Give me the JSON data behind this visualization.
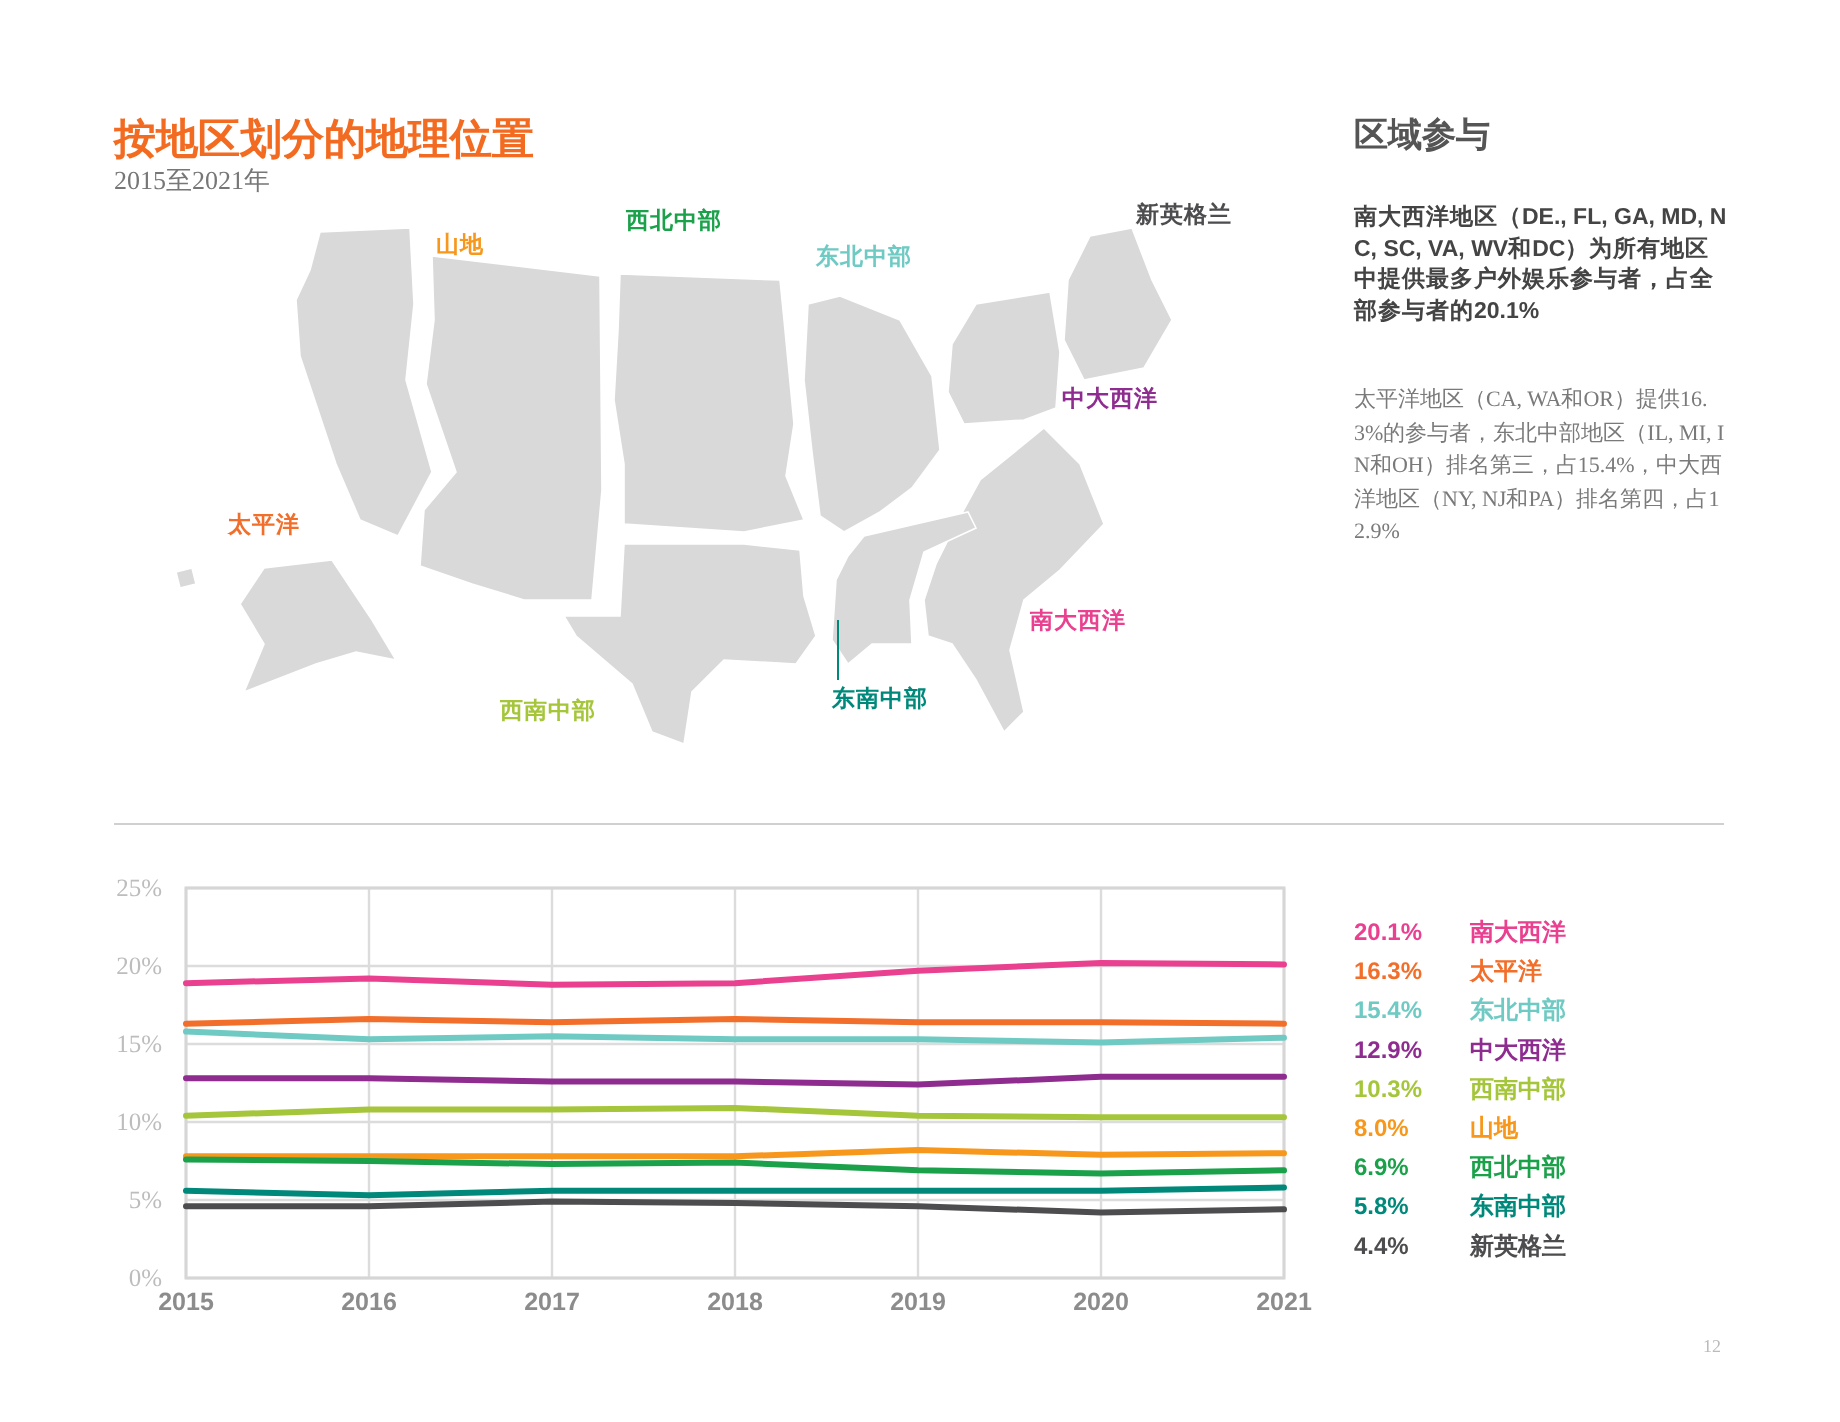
{
  "chart_data": [
    {
      "type": "line",
      "title": "按地区划分的地理位置",
      "subtitle": "2015至2021年",
      "x": [
        2015,
        2016,
        2017,
        2018,
        2019,
        2020,
        2021
      ],
      "xlim": [
        2015,
        2021
      ],
      "xticks": [
        2015,
        2016,
        2017,
        2018,
        2019,
        2020,
        2021
      ],
      "ylim": [
        0,
        25
      ],
      "yticks": [
        {
          "value": 0,
          "label": "0%"
        },
        {
          "value": 5,
          "label": "5%"
        },
        {
          "value": 10,
          "label": "10%"
        },
        {
          "value": 15,
          "label": "15%"
        },
        {
          "value": 20,
          "label": "20%"
        },
        {
          "value": 25,
          "label": "25%"
        }
      ],
      "grid": true,
      "legend": "right",
      "series": [
        {
          "name": "南大西洋",
          "color": "#e9408f",
          "values": [
            18.9,
            19.2,
            18.8,
            18.9,
            19.7,
            20.2,
            20.1
          ]
        },
        {
          "name": "太平洋",
          "color": "#f26f2b",
          "values": [
            16.3,
            16.6,
            16.4,
            16.6,
            16.4,
            16.4,
            16.3
          ]
        },
        {
          "name": "东北中部",
          "color": "#6fcac3",
          "values": [
            15.8,
            15.3,
            15.5,
            15.3,
            15.3,
            15.1,
            15.4
          ]
        },
        {
          "name": "中大西洋",
          "color": "#8e2d8f",
          "values": [
            12.8,
            12.8,
            12.6,
            12.6,
            12.4,
            12.9,
            12.9
          ]
        },
        {
          "name": "西南中部",
          "color": "#a5c63b",
          "values": [
            10.4,
            10.8,
            10.8,
            10.9,
            10.4,
            10.3,
            10.3
          ]
        },
        {
          "name": "山地",
          "color": "#f7981d",
          "values": [
            7.8,
            7.8,
            7.8,
            7.8,
            8.2,
            7.9,
            8.0
          ]
        },
        {
          "name": "西北中部",
          "color": "#1aa14a",
          "values": [
            7.6,
            7.5,
            7.3,
            7.4,
            6.9,
            6.7,
            6.9
          ]
        },
        {
          "name": "东南中部",
          "color": "#00897b",
          "values": [
            5.6,
            5.3,
            5.6,
            5.6,
            5.6,
            5.6,
            5.8
          ]
        },
        {
          "name": "新英格兰",
          "color": "#4d4d4f",
          "values": [
            4.6,
            4.6,
            4.9,
            4.8,
            4.6,
            4.2,
            4.4
          ]
        }
      ],
      "annotations": [
        "20.1%",
        "16.3%",
        "15.4%",
        "12.9%",
        "10.3%",
        "8.0%",
        "6.9%",
        "5.8%",
        "4.4%",
        "12"
      ]
    },
    {
      "type": "other",
      "title": "区域参与",
      "annotations": [
        "南大西洋地区（DE., FL, GA, MD, NC, SC, VA, WV和DC）为所有地区中提供最多户外娱乐参与者，占全部参与者的20.1%",
        "太平洋地区（CA, WA和OR）提供16.3%的参与者，东北中部地区（IL, MI, IN和OH）排名第三，占15.4%，中大西洋地区（NY, NJ和PA）排名第四，占12.9%"
      ]
    }
  ]
}
